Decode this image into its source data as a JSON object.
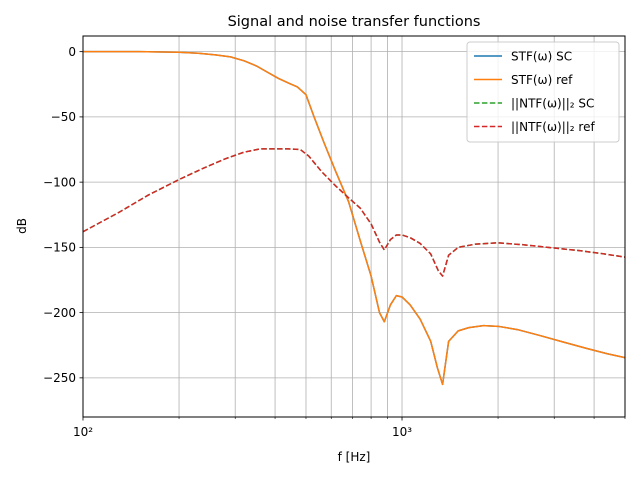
{
  "chart_data": {
    "type": "line",
    "title": "Signal and noise transfer functions",
    "xlabel": "f [Hz]",
    "ylabel": "dB",
    "xscale": "log",
    "xlim": [
      100,
      5000
    ],
    "ylim": [
      -280,
      12
    ],
    "xticks": [
      {
        "value": 100,
        "label": "10²"
      },
      {
        "value": 1000,
        "label": "10³"
      }
    ],
    "yticks": [
      0,
      -50,
      -100,
      -150,
      -200,
      -250
    ],
    "grid": true,
    "legend_position": "upper-right",
    "series": [
      {
        "name": "STF(ω) SC",
        "color": "#1f77b4",
        "dash": "solid",
        "x": [
          100,
          150,
          200,
          230,
          260,
          290,
          320,
          350,
          380,
          410,
          440,
          470,
          500,
          530,
          570,
          620,
          680,
          740,
          800,
          850,
          880,
          920,
          960,
          1000,
          1060,
          1140,
          1230,
          1290,
          1340,
          1400,
          1500,
          1620,
          1800,
          2000,
          2300,
          2700,
          3200,
          3800,
          4400,
          5000
        ],
        "y": [
          0,
          0,
          -0.5,
          -1.2,
          -2.5,
          -4,
          -7,
          -11,
          -16,
          -20.5,
          -24,
          -27,
          -33,
          -50,
          -70,
          -92,
          -115,
          -145,
          -172,
          -200,
          -207,
          -194,
          -187,
          -188,
          -194,
          -205,
          -222,
          -242,
          -255,
          -222,
          -214,
          -211.5,
          -210,
          -210.5,
          -213,
          -217.5,
          -222.5,
          -227.5,
          -231.5,
          -234.5
        ]
      },
      {
        "name": "STF(ω) ref",
        "color": "#ff7f0e",
        "dash": "solid",
        "x": [
          100,
          150,
          200,
          230,
          260,
          290,
          320,
          350,
          380,
          410,
          440,
          470,
          500,
          530,
          570,
          620,
          680,
          740,
          800,
          850,
          880,
          920,
          960,
          1000,
          1060,
          1140,
          1230,
          1290,
          1340,
          1400,
          1500,
          1620,
          1800,
          2000,
          2300,
          2700,
          3200,
          3800,
          4400,
          5000
        ],
        "y": [
          0,
          0,
          -0.5,
          -1.2,
          -2.5,
          -4,
          -7,
          -11,
          -16,
          -20.5,
          -24,
          -27,
          -33,
          -50,
          -70,
          -92,
          -115,
          -145,
          -172,
          -200,
          -207,
          -194,
          -187,
          -188,
          -194,
          -205,
          -222,
          -242,
          -255,
          -222,
          -214,
          -211.5,
          -210,
          -210.5,
          -213,
          -217.5,
          -222.5,
          -227.5,
          -231.5,
          -234.5
        ]
      },
      {
        "name": "||NTF(ω)||₂ SC",
        "color": "#2ca02c",
        "dash": "dashed",
        "x": [
          100,
          130,
          160,
          200,
          240,
          280,
          320,
          360,
          400,
          440,
          480,
          510,
          560,
          620,
          680,
          740,
          800,
          850,
          880,
          920,
          960,
          1000,
          1060,
          1140,
          1230,
          1300,
          1340,
          1400,
          1500,
          1700,
          2000,
          2400,
          3000,
          3600,
          4300,
          5000
        ],
        "y": [
          -138,
          -123,
          -110,
          -98,
          -89,
          -82,
          -77,
          -74.5,
          -74.5,
          -74.5,
          -75,
          -80,
          -92,
          -103,
          -112,
          -120,
          -132,
          -146,
          -152,
          -144,
          -140.5,
          -140.5,
          -142.5,
          -147,
          -155,
          -168,
          -172,
          -156,
          -150,
          -147.5,
          -146.5,
          -148,
          -150.5,
          -152.5,
          -155,
          -157.5
        ]
      },
      {
        "name": "||NTF(ω)||₂ ref",
        "color": "#d62728",
        "dash": "dashed",
        "x": [
          100,
          130,
          160,
          200,
          240,
          280,
          320,
          360,
          400,
          440,
          480,
          510,
          560,
          620,
          680,
          740,
          800,
          850,
          880,
          920,
          960,
          1000,
          1060,
          1140,
          1230,
          1300,
          1340,
          1400,
          1500,
          1700,
          2000,
          2400,
          3000,
          3600,
          4300,
          5000
        ],
        "y": [
          -138,
          -123,
          -110,
          -98,
          -89,
          -82,
          -77,
          -74.5,
          -74.5,
          -74.5,
          -75,
          -80,
          -92,
          -103,
          -112,
          -120,
          -132,
          -146,
          -152,
          -144,
          -140.5,
          -140.5,
          -142.5,
          -147,
          -155,
          -168,
          -172,
          -156,
          -150,
          -147.5,
          -146.5,
          -148,
          -150.5,
          -152.5,
          -155,
          -157.5
        ]
      }
    ]
  }
}
